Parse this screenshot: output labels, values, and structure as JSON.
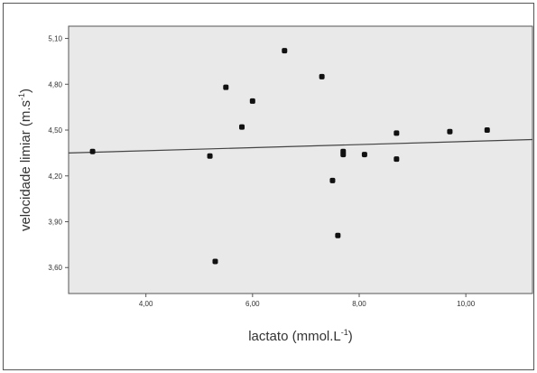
{
  "chart_data": {
    "type": "scatter",
    "xlabel": "lactato (mmol.L",
    "xlabel_sup": "-1",
    "xlabel_tail": ")",
    "ylabel": "velocidade limiar (m.s",
    "ylabel_sup": "-1",
    "ylabel_tail": ")",
    "xlim": [
      2.55,
      11.25
    ],
    "ylim": [
      3.43,
      5.18
    ],
    "x_ticks": [
      4.0,
      6.0,
      8.0,
      10.0
    ],
    "x_tick_labels": [
      "4,00",
      "6,00",
      "8,00",
      "10,00"
    ],
    "y_ticks": [
      3.6,
      3.9,
      4.2,
      4.5,
      4.8,
      5.1
    ],
    "y_tick_labels": [
      "3,60",
      "3,90",
      "4,20",
      "4,50",
      "4,80",
      "5,10"
    ],
    "grid": false,
    "plot_background": "#e9e9e9",
    "marker_color": "#111111",
    "points": [
      {
        "x": 3.0,
        "y": 4.36
      },
      {
        "x": 5.2,
        "y": 4.33
      },
      {
        "x": 5.3,
        "y": 3.64
      },
      {
        "x": 5.5,
        "y": 4.78
      },
      {
        "x": 5.8,
        "y": 4.52
      },
      {
        "x": 6.0,
        "y": 4.69
      },
      {
        "x": 6.6,
        "y": 5.02
      },
      {
        "x": 7.3,
        "y": 4.85
      },
      {
        "x": 7.5,
        "y": 4.17
      },
      {
        "x": 7.6,
        "y": 3.81
      },
      {
        "x": 7.7,
        "y": 4.36
      },
      {
        "x": 7.7,
        "y": 4.34
      },
      {
        "x": 8.1,
        "y": 4.34
      },
      {
        "x": 8.7,
        "y": 4.48
      },
      {
        "x": 8.7,
        "y": 4.31
      },
      {
        "x": 9.7,
        "y": 4.49
      },
      {
        "x": 10.4,
        "y": 4.5
      }
    ],
    "fit_line": {
      "x": [
        2.55,
        11.25
      ],
      "y": [
        4.35,
        4.438
      ]
    }
  }
}
